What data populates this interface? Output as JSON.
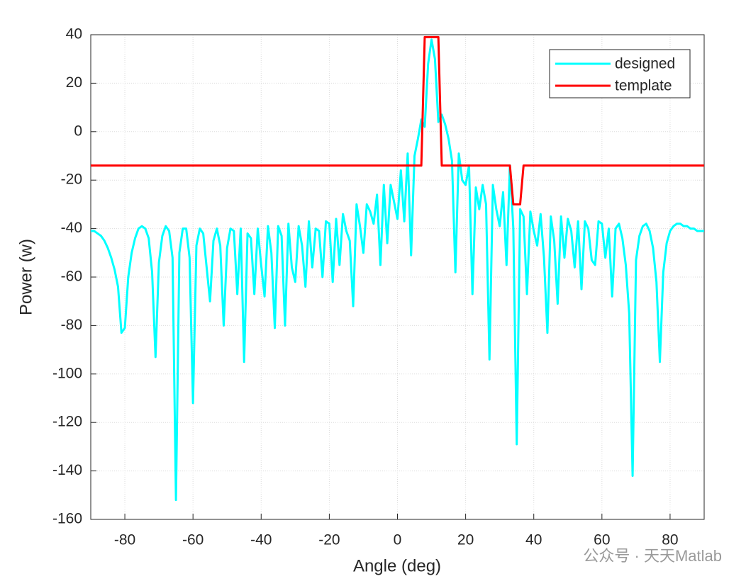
{
  "chart_data": {
    "type": "line",
    "xlabel": "Angle (deg)",
    "ylabel": "Power (w)",
    "annotation": "公众号 · 天天Matlab",
    "x": [
      -90,
      -89,
      -88,
      -87,
      -86,
      -85,
      -84,
      -83,
      -82,
      -81,
      -80,
      -79,
      -78,
      -77,
      -76,
      -75,
      -74,
      -73,
      -72,
      -71,
      -70,
      -69,
      -68,
      -67,
      -66,
      -65,
      -64,
      -63,
      -62,
      -61,
      -60,
      -59,
      -58,
      -57,
      -56,
      -55,
      -54,
      -53,
      -52,
      -51,
      -50,
      -49,
      -48,
      -47,
      -46,
      -45,
      -44,
      -43,
      -42,
      -41,
      -40,
      -39,
      -38,
      -37,
      -36,
      -35,
      -34,
      -33,
      -32,
      -31,
      -30,
      -29,
      -28,
      -27,
      -26,
      -25,
      -24,
      -23,
      -22,
      -21,
      -20,
      -19,
      -18,
      -17,
      -16,
      -15,
      -14,
      -13,
      -12,
      -11,
      -10,
      -9,
      -8,
      -7,
      -6,
      -5,
      -4,
      -3,
      -2,
      -1,
      0,
      1,
      2,
      3,
      4,
      5,
      6,
      7,
      8,
      9,
      10,
      11,
      12,
      13,
      14,
      15,
      16,
      17,
      18,
      19,
      20,
      21,
      22,
      23,
      24,
      25,
      26,
      27,
      28,
      29,
      30,
      31,
      32,
      33,
      34,
      35,
      36,
      37,
      38,
      39,
      40,
      41,
      42,
      43,
      44,
      45,
      46,
      47,
      48,
      49,
      50,
      51,
      52,
      53,
      54,
      55,
      56,
      57,
      58,
      59,
      60,
      61,
      62,
      63,
      64,
      65,
      66,
      67,
      68,
      69,
      70,
      71,
      72,
      73,
      74,
      75,
      76,
      77,
      78,
      79,
      80,
      81,
      82,
      83,
      84,
      85,
      86,
      87,
      88,
      89,
      90
    ],
    "series": [
      {
        "name": "designed",
        "color": "#00ffff",
        "values": [
          -41,
          -41,
          -42,
          -43,
          -45,
          -48,
          -52,
          -57,
          -64,
          -83,
          -81,
          -60,
          -50,
          -44,
          -40,
          -39,
          -40,
          -44,
          -58,
          -93,
          -54,
          -43,
          -39,
          -41,
          -52,
          -152,
          -50,
          -40,
          -40,
          -52,
          -112,
          -47,
          -40,
          -42,
          -56,
          -70,
          -45,
          -40,
          -47,
          -80,
          -48,
          -40,
          -41,
          -67,
          -40,
          -95,
          -42,
          -44,
          -67,
          -40,
          -55,
          -68,
          -39,
          -50,
          -81,
          -39,
          -43,
          -80,
          -38,
          -56,
          -62,
          -39,
          -47,
          -64,
          -37,
          -56,
          -40,
          -41,
          -60,
          -37,
          -38,
          -62,
          -36,
          -55,
          -34,
          -41,
          -45,
          -72,
          -30,
          -39,
          -50,
          -30,
          -33,
          -38,
          -26,
          -55,
          -22,
          -46,
          -22,
          -29,
          -36,
          -16,
          -37,
          -9,
          -51,
          -10,
          -3,
          5,
          2,
          28,
          38,
          30,
          4,
          7,
          3,
          -3,
          -12,
          -58,
          -9,
          -20,
          -22,
          -14,
          -67,
          -23,
          -32,
          -22,
          -30,
          -94,
          -22,
          -32,
          -39,
          -25,
          -55,
          -14,
          -40,
          -129,
          -32,
          -35,
          -67,
          -33,
          -41,
          -47,
          -34,
          -52,
          -83,
          -35,
          -45,
          -71,
          -35,
          -52,
          -36,
          -41,
          -56,
          -37,
          -65,
          -37,
          -40,
          -53,
          -55,
          -37,
          -38,
          -52,
          -40,
          -68,
          -40,
          -38,
          -44,
          -55,
          -75,
          -142,
          -53,
          -43,
          -39,
          -38,
          -41,
          -48,
          -62,
          -95,
          -58,
          -46,
          -41,
          -39,
          -38,
          -38,
          -39,
          -39,
          -40,
          -40,
          -41,
          -41,
          -41
        ]
      },
      {
        "name": "template",
        "color": "#ff0000",
        "x": [
          -90,
          7,
          8,
          12,
          13,
          33,
          34,
          36,
          37,
          90
        ],
        "values": [
          -14,
          -14,
          39,
          39,
          -14,
          -14,
          -30,
          -30,
          -14,
          -14
        ]
      }
    ],
    "xlim": [
      -90,
      90
    ],
    "xticks": [
      -80,
      -60,
      -40,
      -20,
      0,
      20,
      40,
      60,
      80
    ],
    "ylim": [
      -160,
      40
    ],
    "yticks": [
      -160,
      -140,
      -120,
      -100,
      -80,
      -60,
      -40,
      -20,
      0,
      20,
      40
    ],
    "grid": true,
    "legend": "top-right"
  }
}
